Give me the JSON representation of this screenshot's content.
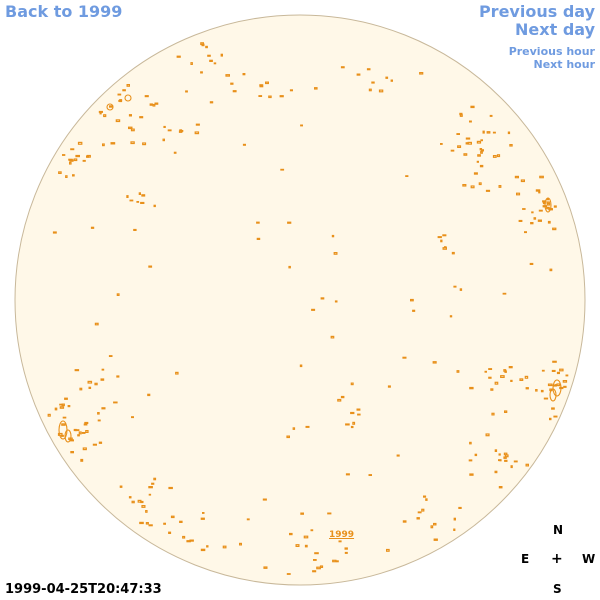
{
  "nav": {
    "back_label": "Back to 1999",
    "prev_day_label": "Previous day",
    "next_day_label": "Next day",
    "prev_hour_label": "Previous hour",
    "next_hour_label": "Next hour"
  },
  "timestamp": "1999-04-25T20:47:33",
  "year_link": "1999",
  "compass": {
    "north": "N",
    "east": "E",
    "center": "+",
    "west": "W",
    "south": "S"
  },
  "colors": {
    "link": "#6f9be0",
    "disk_fill": "#fff8e8",
    "disk_stroke": "#c8b89a",
    "contour": "#e8901a"
  }
}
